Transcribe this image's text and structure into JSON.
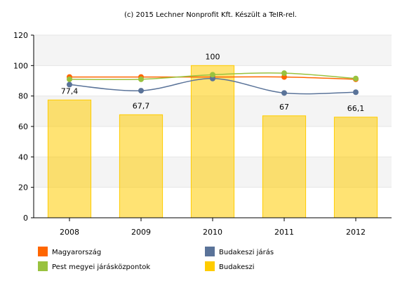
{
  "credit": "(c) 2015 Lechner Nonprofit Kft. Készült a TeIR-rel.",
  "chart_data": {
    "type": "bar",
    "categories": [
      "2008",
      "2009",
      "2010",
      "2011",
      "2012"
    ],
    "ylim": [
      0,
      120
    ],
    "yticks": [
      0,
      20,
      40,
      60,
      80,
      100,
      120
    ],
    "grid": "horizontal bands",
    "legend_position": "bottom",
    "bar_series": {
      "name": "Budakeszi",
      "color": "#ffcc00",
      "values": [
        77.4,
        67.7,
        100,
        67,
        66.1
      ],
      "labels": [
        "77,4",
        "67,7",
        "100",
        "67",
        "66,1"
      ]
    },
    "line_series": [
      {
        "name": "Magyarország",
        "color": "#ff6600",
        "values": [
          92.5,
          92.5,
          92.5,
          92.5,
          91
        ]
      },
      {
        "name": "Budakeszi járás",
        "color": "#5a7399",
        "values": [
          87.5,
          83.5,
          91.5,
          82,
          82.5
        ]
      },
      {
        "name": "Pest megyei járásközpontok",
        "color": "#99c23f",
        "values": [
          91,
          91,
          94,
          95,
          91.5
        ]
      }
    ],
    "legend": [
      {
        "label": "Magyarország",
        "color": "#ff6600"
      },
      {
        "label": "Budakeszi járás",
        "color": "#5a7399"
      },
      {
        "label": "Pest megyei járásközpontok",
        "color": "#99c23f"
      },
      {
        "label": "Budakeszi",
        "color": "#ffcc00"
      }
    ]
  }
}
